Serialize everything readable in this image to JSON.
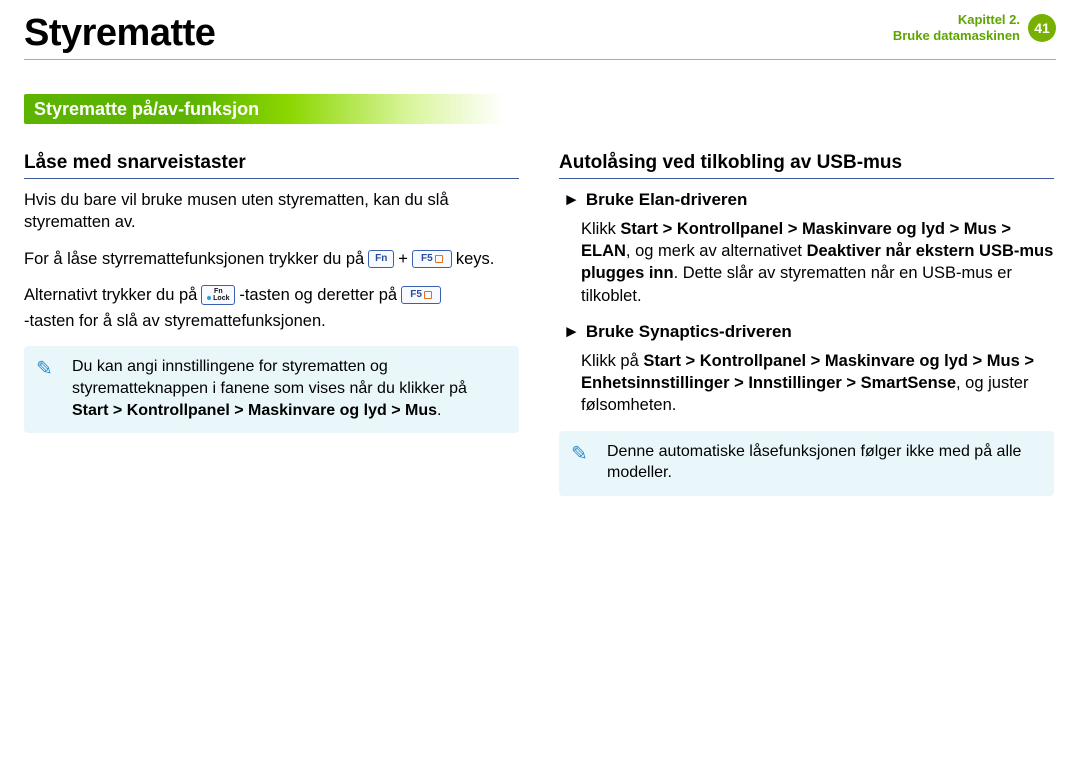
{
  "header": {
    "title": "Styrematte",
    "chapter_line1": "Kapittel 2.",
    "chapter_line2": "Bruke datamaskinen",
    "page_number": "41"
  },
  "section_bar": "Styrematte på/av-funksjon",
  "left": {
    "heading": "Låse med snarveistaster",
    "p1": "Hvis du bare vil bruke musen uten styrematten, kan du slå styrematten av.",
    "p2_a": "For å låse styrremattefunksjonen trykker du på",
    "p2_b": "keys.",
    "p3_a": "Alternativt trykker du på",
    "p3_b": "-tasten og deretter på",
    "p3_c": "-tasten for å slå av styremattefunksjonen.",
    "key_fn": "Fn",
    "key_plus": "+",
    "key_f5": "F5",
    "key_fnlock_top": "Fn",
    "key_fnlock_bot": "Lock",
    "note_a": "Du kan angi innstillingene for styrematten og styrematteknappen i fanene som vises når du klikker på ",
    "note_b": "Start > Kontrollpanel > Maskinvare og lyd > Mus",
    "note_c": "."
  },
  "right": {
    "heading": "Autolåsing ved tilkobling av USB-mus",
    "sub1": "Bruke Elan-driveren",
    "sub1_body_a": "Klikk ",
    "sub1_body_b": "Start > Kontrollpanel > Maskinvare og lyd > Mus > ELAN",
    "sub1_body_c": ", og merk av alternativet ",
    "sub1_body_d": "Deaktiver når ekstern USB-mus plugges inn",
    "sub1_body_e": ". Dette slår av styrematten når en USB-mus er tilkoblet.",
    "sub2": "Bruke Synaptics-driveren",
    "sub2_body_a": "Klikk på ",
    "sub2_body_b": "Start > Kontrollpanel > Maskinvare og lyd > Mus > Enhetsinnstillinger > Innstillinger > SmartSense",
    "sub2_body_c": ", og juster følsomheten.",
    "note": "Denne automatiske låsefunksjonen følger ikke med på alle modeller."
  },
  "icons": {
    "note_glyph": "✎",
    "triangle": "►"
  },
  "colors": {
    "green_dark": "#5cb400",
    "green_light": "#8bd600",
    "green_fade": "#d8f59a",
    "chapter_green": "#5ea500",
    "page_badge": "#78b000",
    "rule_blue": "#3d5a9a",
    "note_bg": "#e9f7fb",
    "note_icon": "#2a8fcf",
    "key_border": "#3a5fb0",
    "key_text": "#2a4aa0",
    "f5_icon_border": "#e0701a"
  }
}
